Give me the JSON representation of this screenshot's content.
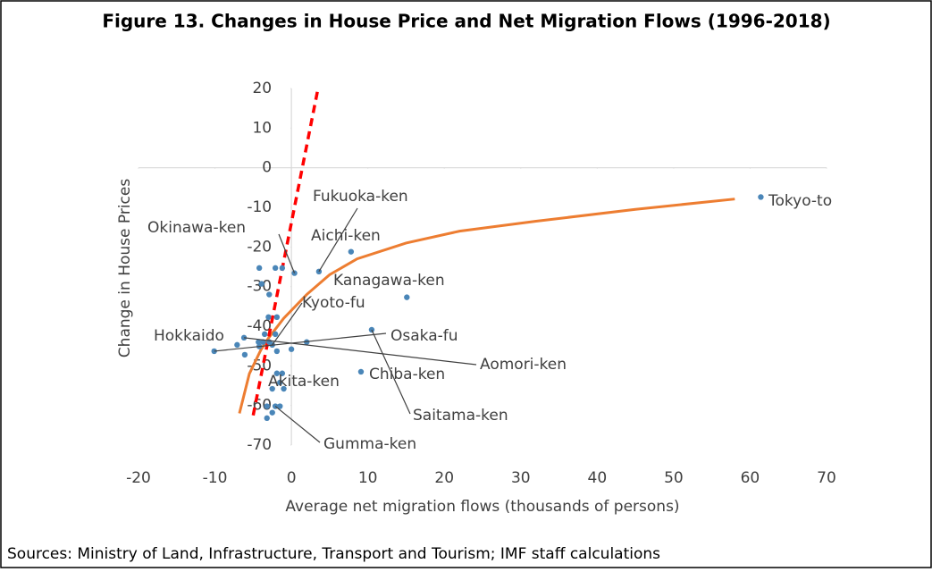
{
  "chart_data": {
    "type": "scatter",
    "title": "Figure 13. Changes in House Price and Net Migration Flows (1996-2018)",
    "x_label": "Average net migration flows (thousands of persons)",
    "y_label": "Change in House Prices",
    "source": "Sources: Ministry of Land, Infrastructure, Transport and Tourism; IMF staff calculations",
    "xlim": [
      -20,
      70
    ],
    "xticks": [
      -20,
      -10,
      0,
      10,
      20,
      30,
      40,
      50,
      60,
      70
    ],
    "ylim": [
      -70,
      20
    ],
    "yticks": [
      -70,
      -60,
      -50,
      -40,
      -30,
      -20,
      -10,
      0,
      10,
      20
    ],
    "color": "#4a86b8",
    "x": [
      61.4,
      15.1,
      7.8,
      3.6,
      0.4,
      -2.5,
      -10.1,
      -7.1,
      -6.2,
      10.5,
      9.1,
      -4.2,
      -2.1,
      -3.9,
      -2.9,
      -1.9,
      -1.2,
      -3.0,
      -3.5,
      -2.1,
      -2.9,
      -4.3,
      -6.1,
      -4.2,
      -3.7,
      0.0,
      2.0,
      -1.9,
      -1.9,
      -1.2,
      -1.5,
      -2.5,
      -1.0,
      -2.1,
      -1.5,
      -3.2,
      -2.5,
      -3.2
    ],
    "y": [
      -7.4,
      -32.7,
      -21.2,
      -26.2,
      -26.6,
      -44.7,
      -46.3,
      -44.7,
      -42.9,
      -40.9,
      -51.5,
      -25.3,
      -25.3,
      -29.3,
      -32.0,
      -37.7,
      -25.3,
      -37.7,
      -42.0,
      -42.0,
      -44.0,
      -44.0,
      -47.2,
      -45.1,
      -44.0,
      -45.8,
      -44.0,
      -46.3,
      -51.9,
      -51.9,
      -54.2,
      -55.8,
      -55.8,
      -60.2,
      -60.2,
      -60.2,
      -61.8,
      -63.2
    ],
    "annotations": [
      {
        "text": "Tokyo-to",
        "point": 0
      },
      {
        "text": "Kanagawa-ken",
        "point": 1
      },
      {
        "text": "Aichi-ken",
        "point": 2
      },
      {
        "text": "Fukuoka-ken",
        "point": 3
      },
      {
        "text": "Okinawa-ken",
        "point": 4
      },
      {
        "text": "Kyoto-fu",
        "point": 5
      },
      {
        "text": "Hokkaido",
        "point": 7
      },
      {
        "text": "Osaka-fu",
        "point": 6
      },
      {
        "text": "Aomori-ken",
        "point": 8
      },
      {
        "text": "Saitama-ken",
        "point": 9
      },
      {
        "text": "Chiba-ken",
        "point": 10
      },
      {
        "text": "Akita-ken",
        "point": 28
      },
      {
        "text": "Gumma-ken",
        "point": 33
      }
    ],
    "trend_line": {
      "color": "#ff0000",
      "dashed": true,
      "x": [
        -5.0,
        3.4
      ],
      "y": [
        -62.5,
        19.2
      ]
    },
    "trend_curve": {
      "color": "#ed7d31",
      "x": [
        -6.8,
        -5.5,
        -4.0,
        -3.0,
        -1.0,
        2.0,
        5.0,
        8.6,
        15.0,
        22.0,
        32.0,
        45.0,
        58.0
      ],
      "y": [
        -62.0,
        -52.0,
        -46.0,
        -43.0,
        -38.0,
        -32.0,
        -27.0,
        -23.0,
        -19.0,
        -16.0,
        -13.5,
        -10.5,
        -7.9
      ]
    }
  }
}
